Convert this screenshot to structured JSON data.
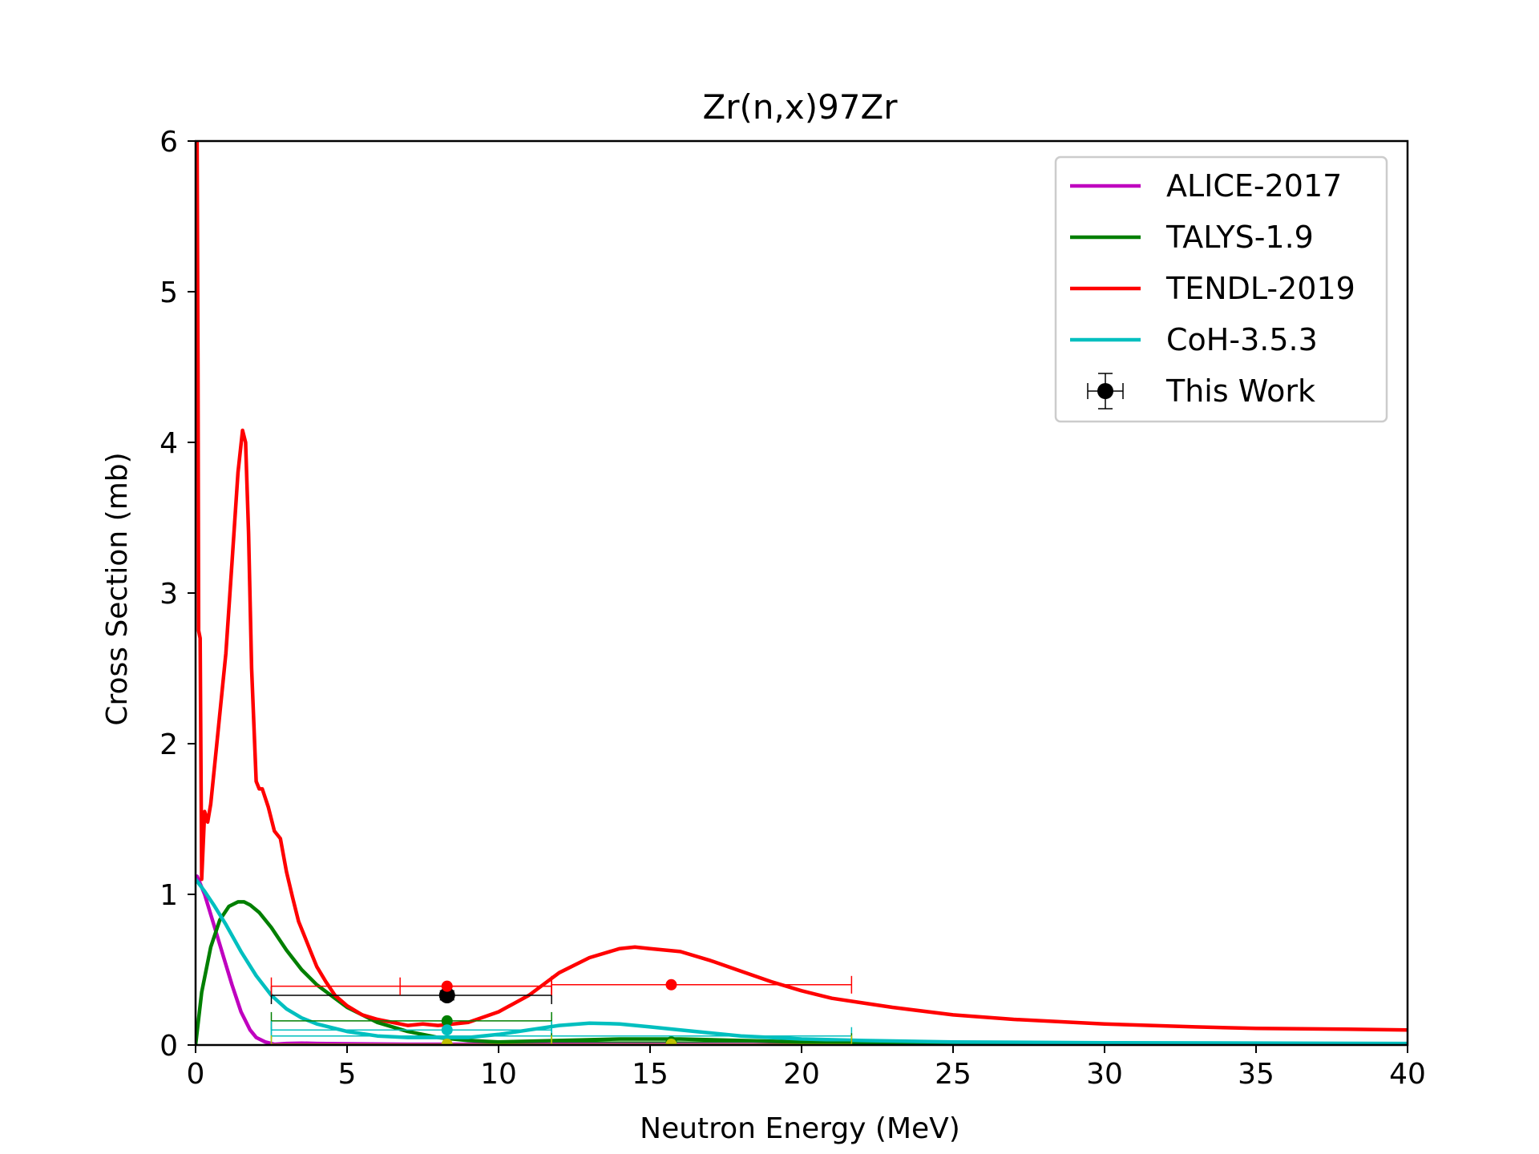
{
  "chart_data": {
    "type": "line",
    "title": "Zr(n,x)97Zr",
    "xlabel": "Neutron Energy (MeV)",
    "ylabel": "Cross Section (mb)",
    "xlim": [
      0,
      40
    ],
    "ylim": [
      0,
      6
    ],
    "xticks": [
      "0",
      "5",
      "10",
      "15",
      "20",
      "25",
      "30",
      "35",
      "40"
    ],
    "yticks": [
      "0",
      "1",
      "2",
      "3",
      "4",
      "5",
      "6"
    ],
    "grid": false,
    "legend_position": "top-right",
    "series": [
      {
        "name": "ALICE-2017",
        "color": "#bf00bf",
        "x": [
          0.05,
          0.3,
          0.6,
          0.9,
          1.2,
          1.5,
          1.8,
          2.0,
          2.3,
          2.6,
          3.0,
          3.5,
          4.0,
          5.0,
          7.0,
          10.0,
          15.0,
          20.0,
          25.0,
          30.0,
          40.0
        ],
        "y": [
          1.12,
          1.0,
          0.8,
          0.6,
          0.4,
          0.22,
          0.1,
          0.05,
          0.02,
          0.005,
          0.01,
          0.012,
          0.01,
          0.008,
          0.005,
          0.005,
          0.003,
          0.002,
          0.002,
          0.001,
          0.001
        ]
      },
      {
        "name": "TALYS-1.9",
        "color": "#007f00",
        "x": [
          0.0,
          0.2,
          0.5,
          0.8,
          1.1,
          1.4,
          1.6,
          1.8,
          2.1,
          2.5,
          3.0,
          3.5,
          4.0,
          5.0,
          6.0,
          7.0,
          8.0,
          9.0,
          10.0,
          12.0,
          14.0,
          16.0,
          18.0,
          20.0,
          22.0,
          25.0,
          30.0,
          40.0
        ],
        "y": [
          0.0,
          0.35,
          0.65,
          0.83,
          0.92,
          0.95,
          0.95,
          0.93,
          0.88,
          0.78,
          0.63,
          0.5,
          0.4,
          0.25,
          0.15,
          0.09,
          0.05,
          0.03,
          0.02,
          0.03,
          0.04,
          0.04,
          0.03,
          0.02,
          0.01,
          0.005,
          0.002,
          0.001
        ]
      },
      {
        "name": "TENDL-2019",
        "color": "#ff0000",
        "x": [
          0.05,
          0.08,
          0.1,
          0.15,
          0.2,
          0.3,
          0.4,
          0.5,
          0.7,
          1.0,
          1.2,
          1.4,
          1.55,
          1.65,
          1.75,
          1.85,
          2.0,
          2.1,
          2.2,
          2.4,
          2.6,
          2.8,
          3.0,
          3.2,
          3.4,
          3.6,
          3.8,
          4.0,
          4.3,
          4.6,
          5.0,
          5.5,
          6.0,
          6.5,
          7.0,
          7.5,
          8.0,
          8.5,
          9.0,
          10.0,
          11.0,
          12.0,
          13.0,
          14.0,
          14.5,
          15.0,
          16.0,
          17.0,
          18.0,
          19.0,
          20.0,
          21.0,
          22.0,
          23.0,
          25.0,
          27.0,
          30.0,
          33.0,
          35.0,
          38.0,
          40.0
        ],
        "y": [
          6.0,
          4.5,
          2.75,
          2.7,
          1.1,
          1.55,
          1.48,
          1.6,
          2.0,
          2.6,
          3.2,
          3.8,
          4.08,
          4.0,
          3.4,
          2.5,
          1.75,
          1.7,
          1.7,
          1.58,
          1.42,
          1.37,
          1.15,
          0.98,
          0.82,
          0.72,
          0.62,
          0.52,
          0.42,
          0.33,
          0.26,
          0.2,
          0.17,
          0.15,
          0.13,
          0.14,
          0.13,
          0.14,
          0.15,
          0.22,
          0.33,
          0.48,
          0.58,
          0.64,
          0.65,
          0.64,
          0.62,
          0.56,
          0.49,
          0.42,
          0.36,
          0.31,
          0.28,
          0.25,
          0.2,
          0.17,
          0.14,
          0.12,
          0.11,
          0.105,
          0.1
        ]
      },
      {
        "name": "CoH-3.5.3",
        "color": "#00bfbf",
        "x": [
          0.0,
          0.3,
          0.6,
          1.0,
          1.5,
          2.0,
          2.5,
          3.0,
          3.5,
          4.0,
          5.0,
          6.0,
          7.0,
          8.0,
          9.0,
          10.0,
          11.0,
          12.0,
          13.0,
          14.0,
          15.0,
          16.0,
          17.0,
          18.0,
          19.0,
          20.0,
          22.0,
          25.0,
          30.0,
          40.0
        ],
        "y": [
          1.1,
          1.02,
          0.93,
          0.8,
          0.62,
          0.46,
          0.33,
          0.24,
          0.18,
          0.14,
          0.09,
          0.06,
          0.05,
          0.05,
          0.05,
          0.07,
          0.1,
          0.13,
          0.145,
          0.14,
          0.12,
          0.1,
          0.08,
          0.06,
          0.05,
          0.04,
          0.03,
          0.02,
          0.015,
          0.01
        ]
      }
    ],
    "errorbars": [
      {
        "series": "This Work",
        "color": "#000000",
        "x": 8.3,
        "y": 0.33,
        "xerr": [
          2.5,
          11.75
        ],
        "yerr": [
          0.3,
          0.36
        ],
        "marker": "large"
      },
      {
        "series": "TENDL-2019",
        "color": "#ff0000",
        "x": 8.3,
        "y": 0.39,
        "xerr": [
          2.5,
          11.75
        ],
        "yerr": [
          0.39,
          0.39
        ],
        "marker": "small"
      },
      {
        "series": "TENDL-2019",
        "color": "#ff0000",
        "x": 6.75,
        "y": 0.39,
        "xerr": [
          6.75,
          11.75
        ],
        "yerr": [
          0.39,
          0.39
        ],
        "marker": "none"
      },
      {
        "series": "TENDL-2019",
        "color": "#ff0000",
        "x": 15.7,
        "y": 0.4,
        "xerr": [
          11.75,
          21.65
        ],
        "yerr": [
          0.4,
          0.4
        ],
        "marker": "small"
      },
      {
        "series": "TALYS-1.9",
        "color": "#007f00",
        "x": 8.3,
        "y": 0.16,
        "xerr": [
          2.5,
          11.75
        ],
        "yerr": [
          0.16,
          0.16
        ],
        "marker": "small"
      },
      {
        "series": "CoH-3.5.3",
        "color": "#00bfbf",
        "x": 8.3,
        "y": 0.1,
        "xerr": [
          2.5,
          11.75
        ],
        "yerr": [
          0.1,
          0.1
        ],
        "marker": "small"
      },
      {
        "series": "CoH-3.5.3",
        "color": "#00bfbf",
        "x": 15.7,
        "y": 0.06,
        "xerr": [
          11.75,
          21.65
        ],
        "yerr": [
          0.06,
          0.06
        ],
        "marker": "none"
      },
      {
        "series": "CoH-3.5.3",
        "color": "#00bfbf",
        "x": 8.3,
        "y": 0.06,
        "xerr": [
          2.5,
          11.75
        ],
        "yerr": [
          0.06,
          0.06
        ],
        "marker": "none"
      },
      {
        "series": "TALYS-1.9",
        "color": "#007f00",
        "x": 15.7,
        "y": 0.02,
        "xerr": [
          11.75,
          21.65
        ],
        "yerr": [
          0.02,
          0.02
        ],
        "marker": "small"
      },
      {
        "series": "ALICE-2017",
        "color": "#bfbf00",
        "x": 8.3,
        "y": 0.005,
        "xerr": [
          2.5,
          11.75
        ],
        "yerr": [
          0.005,
          0.005
        ],
        "marker": "small"
      },
      {
        "series": "ALICE-2017",
        "color": "#bfbf00",
        "x": 15.7,
        "y": 0.005,
        "xerr": [
          11.75,
          21.65
        ],
        "yerr": [
          0.005,
          0.005
        ],
        "marker": "small"
      }
    ],
    "legend": [
      {
        "label": "ALICE-2017",
        "color": "#bf00bf",
        "kind": "line"
      },
      {
        "label": "TALYS-1.9",
        "color": "#007f00",
        "kind": "line"
      },
      {
        "label": "TENDL-2019",
        "color": "#ff0000",
        "kind": "line"
      },
      {
        "label": "CoH-3.5.3",
        "color": "#00bfbf",
        "kind": "line"
      },
      {
        "label": "This Work",
        "color": "#000000",
        "kind": "errorbar"
      }
    ]
  }
}
